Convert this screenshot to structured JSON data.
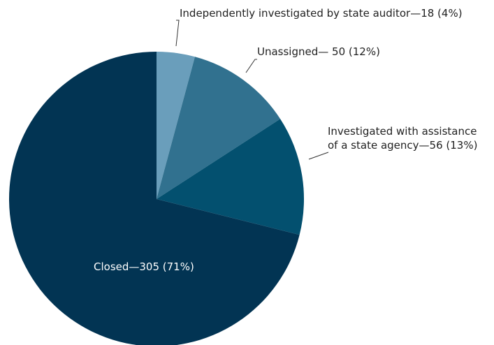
{
  "chart_data": {
    "type": "pie",
    "title": "",
    "slices": [
      {
        "label": "Independently investigated by state auditor",
        "value": 18,
        "percent": "4%",
        "display": "Independently investigated by state auditor—18 (4%)",
        "color": "#6a9ebb"
      },
      {
        "label": "Unassigned",
        "value": 50,
        "percent": "12%",
        "display": "Unassigned— 50 (12%)",
        "color": "#31718f"
      },
      {
        "label": "Investigated with assistance of a state agency",
        "value": 56,
        "percent": "13%",
        "display_line1": "Investigated with assistance",
        "display_line2": "of a state agency—56 (13%)",
        "color": "#03506f"
      },
      {
        "label": "Closed",
        "value": 305,
        "percent": "71%",
        "display": "Closed—305 (71%)",
        "color": "#023453"
      }
    ],
    "start_angle": "top",
    "direction": "clockwise"
  }
}
